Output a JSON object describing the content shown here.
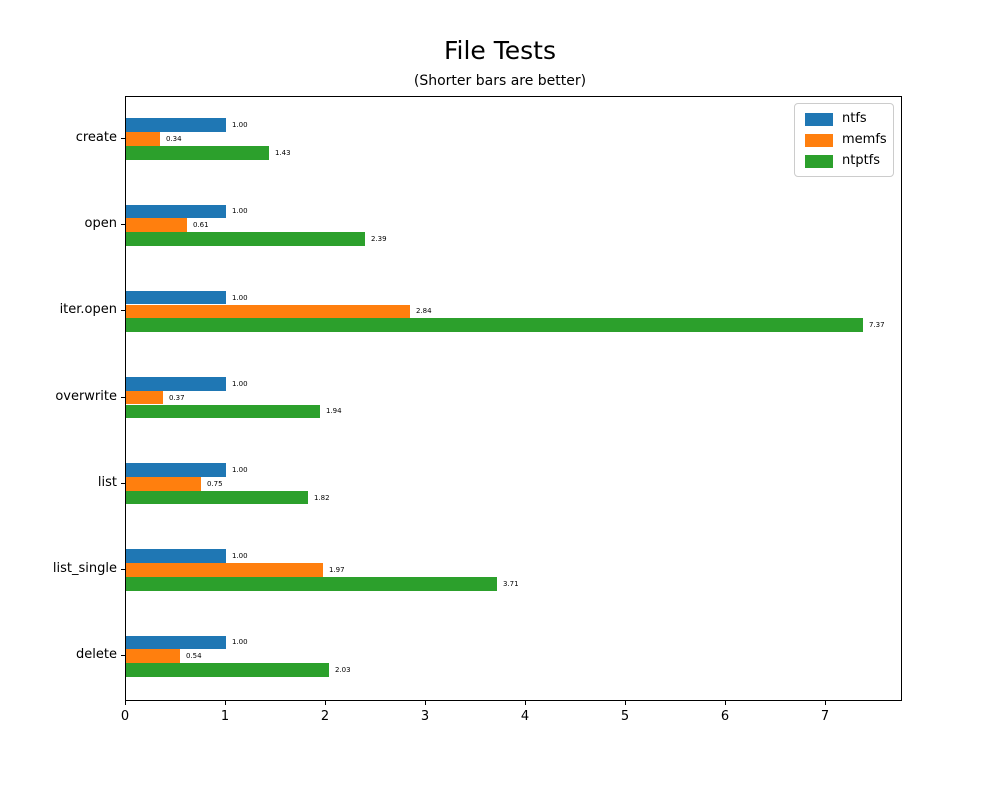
{
  "chart_data": {
    "type": "bar",
    "orientation": "horizontal",
    "title": "File Tests",
    "subtitle": "(Shorter bars are better)",
    "categories": [
      "create",
      "open",
      "iter.open",
      "overwrite",
      "list",
      "list_single",
      "delete"
    ],
    "series": [
      {
        "name": "ntfs",
        "color": "#1f77b4",
        "values": [
          1.0,
          1.0,
          1.0,
          1.0,
          1.0,
          1.0,
          1.0
        ],
        "labels": [
          "1.00",
          "1.00",
          "1.00",
          "1.00",
          "1.00",
          "1.00",
          "1.00"
        ]
      },
      {
        "name": "memfs",
        "color": "#ff7f0e",
        "values": [
          0.34,
          0.61,
          2.84,
          0.37,
          0.75,
          1.97,
          0.54
        ],
        "labels": [
          "0.34",
          "0.61",
          "2.84",
          "0.37",
          "0.75",
          "1.97",
          "0.54"
        ]
      },
      {
        "name": "ntptfs",
        "color": "#2ca02c",
        "values": [
          1.43,
          2.39,
          7.37,
          1.94,
          1.82,
          3.71,
          2.03
        ],
        "labels": [
          "1.43",
          "2.39",
          "7.37",
          "1.94",
          "1.82",
          "3.71",
          "2.03"
        ]
      }
    ],
    "xlim": [
      0,
      7.77
    ],
    "x_ticks": [
      "0",
      "1",
      "2",
      "3",
      "4",
      "5",
      "6",
      "7"
    ],
    "grid": false,
    "legend_position": "upper right",
    "axis_color": "#000000",
    "background_color": "#ffffff",
    "xlabel": "",
    "ylabel": ""
  }
}
